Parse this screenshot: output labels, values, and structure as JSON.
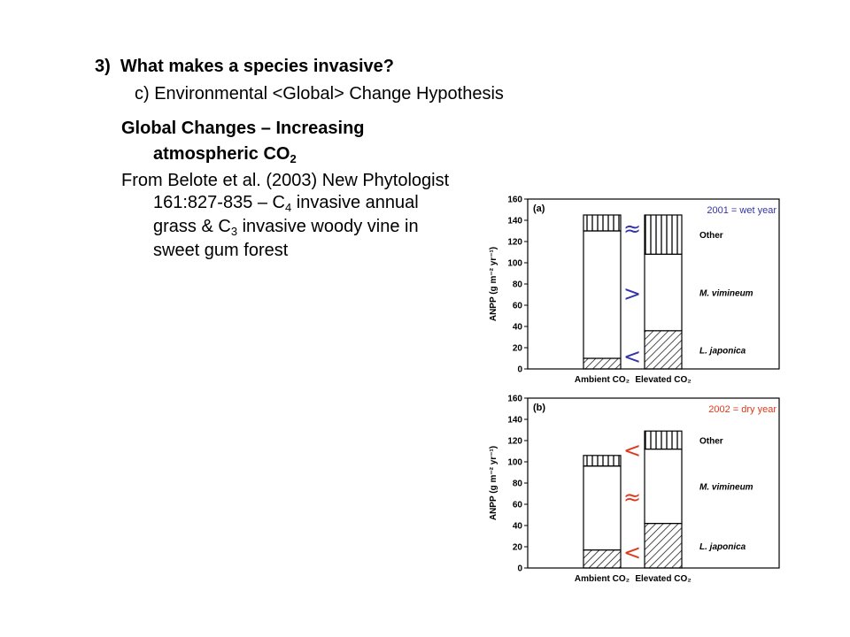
{
  "slide": {
    "heading_number": "3)",
    "heading": "What makes a species invasive?",
    "subheading": "c) Environmental <Global> Change Hypothesis",
    "b1": "Global Changes – Increasing",
    "b2_main": "atmospheric CO",
    "b2_sub": "2",
    "b3": "From Belote et al. (2003) New Phytologist",
    "b4_pre": "161:827-835 – C",
    "b4_sub": "4",
    "b4_post": " invasive annual",
    "b5_pre": "grass & C",
    "b5_sub": "3",
    "b5_post": " invasive woody vine in",
    "b6": "sweet gum forest"
  },
  "colors": {
    "blue_note": "#3333aa",
    "red_note": "#dd3a1c"
  },
  "chart_data": [
    {
      "type": "bar",
      "stacked": true,
      "panel_label": "(a)",
      "note": "2001 = wet year",
      "ylabel": "ANPP (g m⁻² yr⁻¹)",
      "ylim": [
        0,
        160
      ],
      "yticks": [
        0,
        20,
        40,
        60,
        80,
        100,
        120,
        140,
        160
      ],
      "categories": [
        "Ambient CO₂",
        "Elevated CO₂"
      ],
      "series": [
        {
          "name": "L. japonica",
          "values": [
            10,
            36
          ]
        },
        {
          "name": "M. vimineum",
          "values": [
            120,
            72
          ]
        },
        {
          "name": "Other",
          "values": [
            15,
            37
          ]
        }
      ],
      "comparisons": [
        "<",
        ">",
        "≈"
      ]
    },
    {
      "type": "bar",
      "stacked": true,
      "panel_label": "(b)",
      "note": "2002 = dry year",
      "ylabel": "ANPP (g m⁻² yr⁻¹)",
      "ylim": [
        0,
        160
      ],
      "yticks": [
        0,
        20,
        40,
        60,
        80,
        100,
        120,
        140,
        160
      ],
      "categories": [
        "Ambient CO₂",
        "Elevated CO₂"
      ],
      "series": [
        {
          "name": "L. japonica",
          "values": [
            17,
            42
          ]
        },
        {
          "name": "M. vimineum",
          "values": [
            79,
            70
          ]
        },
        {
          "name": "Other",
          "values": [
            10,
            17
          ]
        }
      ],
      "comparisons": [
        "<",
        "≈",
        "<"
      ]
    }
  ]
}
